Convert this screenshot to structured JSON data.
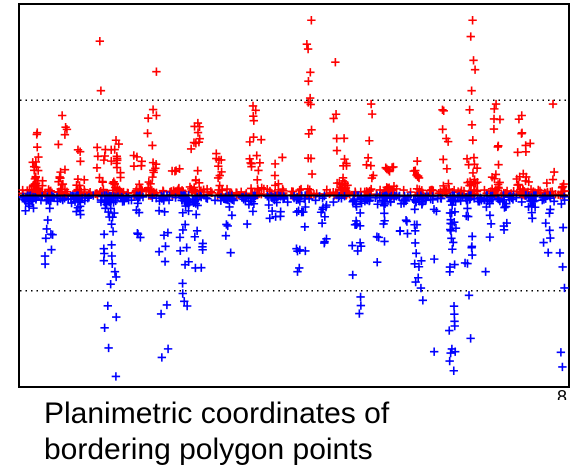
{
  "caption": {
    "line1": "Planimetric coordinates of",
    "line2": "bordering polygon points"
  },
  "chart_data": {
    "type": "scatter",
    "title": "",
    "xlabel": "",
    "ylabel": "",
    "x_tick_labels": [
      {
        "value": 8,
        "label": "8"
      }
    ],
    "xlim": [
      0,
      8
    ],
    "ylim": [
      -1,
      1
    ],
    "grid": {
      "dotted_y": [
        -0.5,
        0.5
      ],
      "solid_y": [
        0
      ]
    },
    "legend": "none",
    "marker": "plus",
    "series": [
      {
        "color": "#ff0000",
        "clusters": [
          {
            "x": 0.25,
            "spread": 0.16,
            "top": 0.33,
            "n": 30
          },
          {
            "x": 0.62,
            "spread": 0.14,
            "top": 0.42,
            "n": 22
          },
          {
            "x": 0.88,
            "spread": 0.12,
            "top": 0.24,
            "n": 16
          },
          {
            "x": 1.18,
            "spread": 0.12,
            "top": 0.81,
            "n": 5
          },
          {
            "x": 1.18,
            "spread": 0.14,
            "top": 0.55,
            "n": 10
          },
          {
            "x": 1.4,
            "spread": 0.16,
            "top": 0.29,
            "n": 22
          },
          {
            "x": 1.72,
            "spread": 0.14,
            "top": 0.21,
            "n": 14
          },
          {
            "x": 1.95,
            "spread": 0.1,
            "top": 0.65,
            "n": 4
          },
          {
            "x": 1.93,
            "spread": 0.14,
            "top": 0.42,
            "n": 20
          },
          {
            "x": 2.28,
            "spread": 0.12,
            "top": 0.14,
            "n": 12
          },
          {
            "x": 2.55,
            "spread": 0.18,
            "top": 0.38,
            "n": 22
          },
          {
            "x": 2.92,
            "spread": 0.12,
            "top": 0.22,
            "n": 12
          },
          {
            "x": 3.45,
            "spread": 0.2,
            "top": 0.47,
            "n": 26
          },
          {
            "x": 3.78,
            "spread": 0.14,
            "top": 0.2,
            "n": 12
          },
          {
            "x": 4.22,
            "spread": 0.1,
            "top": 0.92,
            "n": 12
          },
          {
            "x": 4.22,
            "spread": 0.12,
            "top": 0.6,
            "n": 8
          },
          {
            "x": 4.6,
            "spread": 0.08,
            "top": 0.7,
            "n": 8
          },
          {
            "x": 4.7,
            "spread": 0.2,
            "top": 0.3,
            "n": 26
          },
          {
            "x": 5.1,
            "spread": 0.12,
            "top": 0.48,
            "n": 12
          },
          {
            "x": 5.4,
            "spread": 0.16,
            "top": 0.15,
            "n": 20
          },
          {
            "x": 5.8,
            "spread": 0.14,
            "top": 0.18,
            "n": 14
          },
          {
            "x": 6.2,
            "spread": 0.12,
            "top": 0.45,
            "n": 12
          },
          {
            "x": 6.6,
            "spread": 0.1,
            "top": 0.92,
            "n": 10
          },
          {
            "x": 6.6,
            "spread": 0.16,
            "top": 0.55,
            "n": 24
          },
          {
            "x": 6.95,
            "spread": 0.16,
            "top": 0.48,
            "n": 20
          },
          {
            "x": 7.35,
            "spread": 0.2,
            "top": 0.42,
            "n": 30
          },
          {
            "x": 7.75,
            "spread": 0.12,
            "top": 0.48,
            "n": 8
          },
          {
            "x": 7.92,
            "spread": 0.08,
            "top": 0.06,
            "n": 8
          }
        ]
      },
      {
        "color": "#0000ff",
        "clusters": [
          {
            "x": 0.12,
            "spread": 0.2,
            "bottom": -0.08,
            "n": 16
          },
          {
            "x": 0.42,
            "spread": 0.12,
            "bottom": -0.36,
            "n": 10
          },
          {
            "x": 0.8,
            "spread": 0.18,
            "bottom": -0.1,
            "n": 18
          },
          {
            "x": 1.3,
            "spread": 0.16,
            "bottom": -0.8,
            "n": 32
          },
          {
            "x": 1.38,
            "spread": 0.08,
            "bottom": -0.95,
            "n": 6
          },
          {
            "x": 1.75,
            "spread": 0.14,
            "bottom": -0.22,
            "n": 12
          },
          {
            "x": 2.1,
            "spread": 0.14,
            "bottom": -0.85,
            "n": 16
          },
          {
            "x": 2.4,
            "spread": 0.14,
            "bottom": -0.58,
            "n": 26
          },
          {
            "x": 2.6,
            "spread": 0.14,
            "bottom": -0.38,
            "n": 14
          },
          {
            "x": 3.05,
            "spread": 0.14,
            "bottom": -0.3,
            "n": 10
          },
          {
            "x": 3.35,
            "spread": 0.14,
            "bottom": -0.15,
            "n": 10
          },
          {
            "x": 3.72,
            "spread": 0.18,
            "bottom": -0.12,
            "n": 16
          },
          {
            "x": 4.1,
            "spread": 0.14,
            "bottom": -0.4,
            "n": 18
          },
          {
            "x": 4.45,
            "spread": 0.12,
            "bottom": -0.25,
            "n": 12
          },
          {
            "x": 4.92,
            "spread": 0.14,
            "bottom": -0.62,
            "n": 24
          },
          {
            "x": 5.28,
            "spread": 0.14,
            "bottom": -0.35,
            "n": 16
          },
          {
            "x": 5.6,
            "spread": 0.12,
            "bottom": -0.2,
            "n": 10
          },
          {
            "x": 5.82,
            "spread": 0.14,
            "bottom": -0.55,
            "n": 20
          },
          {
            "x": 6.05,
            "spread": 0.06,
            "bottom": -0.82,
            "n": 4
          },
          {
            "x": 6.32,
            "spread": 0.12,
            "bottom": -0.92,
            "n": 34
          },
          {
            "x": 6.55,
            "spread": 0.12,
            "bottom": -0.75,
            "n": 16
          },
          {
            "x": 6.85,
            "spread": 0.14,
            "bottom": -0.4,
            "n": 14
          },
          {
            "x": 7.1,
            "spread": 0.12,
            "bottom": -0.18,
            "n": 10
          },
          {
            "x": 7.45,
            "spread": 0.16,
            "bottom": -0.12,
            "n": 14
          },
          {
            "x": 7.7,
            "spread": 0.12,
            "bottom": -0.3,
            "n": 10
          },
          {
            "x": 7.92,
            "spread": 0.08,
            "bottom": -0.9,
            "n": 8
          }
        ]
      }
    ]
  }
}
